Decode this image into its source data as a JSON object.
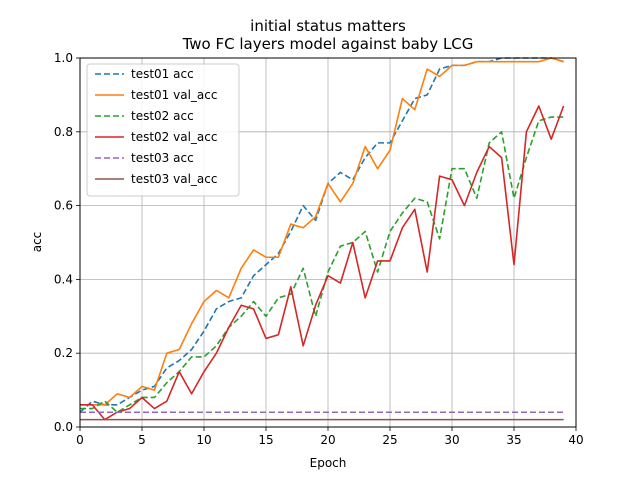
{
  "chart_data": {
    "type": "line",
    "title": "initial status matters",
    "subtitle": "Two FC layers model against baby LCG",
    "xlabel": "Epoch",
    "ylabel": "acc",
    "xlim": [
      0,
      40
    ],
    "ylim": [
      0,
      1.0
    ],
    "xticks": [
      "0",
      "5",
      "10",
      "15",
      "20",
      "25",
      "30",
      "35",
      "40"
    ],
    "yticks": [
      "0.0",
      "0.2",
      "0.4",
      "0.6",
      "0.8",
      "1.0"
    ],
    "grid": true,
    "legend_position": "top-left",
    "x": [
      0,
      1,
      2,
      3,
      4,
      5,
      6,
      7,
      8,
      9,
      10,
      11,
      12,
      13,
      14,
      15,
      16,
      17,
      18,
      19,
      20,
      21,
      22,
      23,
      24,
      25,
      26,
      27,
      28,
      29,
      30,
      31,
      32,
      33,
      34,
      35,
      36,
      37,
      38,
      39
    ],
    "series": [
      {
        "name": "test01 acc",
        "color": "#1f77b4",
        "dash": true,
        "values": [
          0.04,
          0.07,
          0.06,
          0.06,
          0.08,
          0.1,
          0.11,
          0.16,
          0.18,
          0.21,
          0.26,
          0.32,
          0.34,
          0.35,
          0.41,
          0.44,
          0.47,
          0.53,
          0.6,
          0.56,
          0.66,
          0.69,
          0.67,
          0.73,
          0.77,
          0.77,
          0.83,
          0.89,
          0.9,
          0.97,
          0.98,
          0.98,
          0.99,
          0.99,
          1.0,
          1.0,
          1.0,
          1.0,
          1.0,
          0.99
        ]
      },
      {
        "name": "test01 val_acc",
        "color": "#ff7f0e",
        "dash": false,
        "values": [
          0.06,
          0.06,
          0.06,
          0.09,
          0.08,
          0.11,
          0.1,
          0.2,
          0.21,
          0.28,
          0.34,
          0.37,
          0.35,
          0.43,
          0.48,
          0.46,
          0.46,
          0.55,
          0.54,
          0.57,
          0.66,
          0.61,
          0.66,
          0.76,
          0.7,
          0.75,
          0.89,
          0.86,
          0.97,
          0.95,
          0.98,
          0.98,
          0.99,
          0.99,
          0.99,
          0.99,
          0.99,
          0.99,
          1.0,
          0.99
        ]
      },
      {
        "name": "test02 acc",
        "color": "#2ca02c",
        "dash": true,
        "values": [
          0.05,
          0.05,
          0.07,
          0.04,
          0.06,
          0.08,
          0.08,
          0.12,
          0.15,
          0.19,
          0.19,
          0.22,
          0.27,
          0.3,
          0.34,
          0.3,
          0.35,
          0.36,
          0.43,
          0.3,
          0.42,
          0.49,
          0.5,
          0.53,
          0.42,
          0.53,
          0.58,
          0.62,
          0.61,
          0.51,
          0.7,
          0.7,
          0.62,
          0.77,
          0.8,
          0.62,
          0.73,
          0.83,
          0.84,
          0.84
        ]
      },
      {
        "name": "test02 val_acc",
        "color": "#d62728",
        "dash": false,
        "values": [
          0.06,
          0.06,
          0.02,
          0.04,
          0.05,
          0.08,
          0.05,
          0.07,
          0.15,
          0.09,
          0.15,
          0.2,
          0.27,
          0.33,
          0.32,
          0.24,
          0.25,
          0.38,
          0.22,
          0.33,
          0.41,
          0.39,
          0.5,
          0.35,
          0.45,
          0.45,
          0.54,
          0.59,
          0.42,
          0.68,
          0.67,
          0.6,
          0.69,
          0.76,
          0.73,
          0.44,
          0.8,
          0.87,
          0.78,
          0.87
        ]
      },
      {
        "name": "test03 acc",
        "color": "#9467bd",
        "dash": true,
        "values": [
          0.04,
          0.04,
          0.04,
          0.04,
          0.04,
          0.04,
          0.04,
          0.04,
          0.04,
          0.04,
          0.04,
          0.04,
          0.04,
          0.04,
          0.04,
          0.04,
          0.04,
          0.04,
          0.04,
          0.04,
          0.04,
          0.04,
          0.04,
          0.04,
          0.04,
          0.04,
          0.04,
          0.04,
          0.04,
          0.04,
          0.04,
          0.04,
          0.04,
          0.04,
          0.04,
          0.04,
          0.04,
          0.04,
          0.04,
          0.04
        ]
      },
      {
        "name": "test03 val_acc",
        "color": "#8c564b",
        "dash": false,
        "values": [
          0.02,
          0.02,
          0.02,
          0.02,
          0.02,
          0.02,
          0.02,
          0.02,
          0.02,
          0.02,
          0.02,
          0.02,
          0.02,
          0.02,
          0.02,
          0.02,
          0.02,
          0.02,
          0.02,
          0.02,
          0.02,
          0.02,
          0.02,
          0.02,
          0.02,
          0.02,
          0.02,
          0.02,
          0.02,
          0.02,
          0.02,
          0.02,
          0.02,
          0.02,
          0.02,
          0.02,
          0.02,
          0.02,
          0.02,
          0.02
        ]
      }
    ]
  }
}
